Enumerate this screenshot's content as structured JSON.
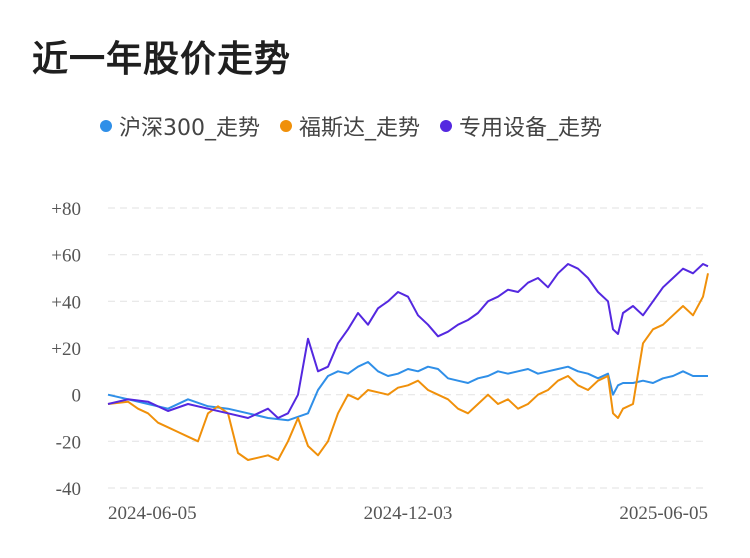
{
  "chart_data": {
    "type": "line",
    "title": "近一年股价走势",
    "xlabel": "",
    "ylabel": "",
    "ylim": [
      -40,
      80
    ],
    "y_ticks": [
      80,
      60,
      40,
      20,
      0,
      -20,
      -40
    ],
    "y_tick_labels": [
      "+80",
      "+60",
      "+40",
      "+20",
      "0",
      "-20",
      "-40"
    ],
    "x_tick_labels": [
      "2024-06-05",
      "2024-12-03",
      "2025-06-05"
    ],
    "x_tick_positions": [
      0,
      120,
      240
    ],
    "x_range": [
      0,
      240
    ],
    "grid": true,
    "legend_position": "top",
    "series": [
      {
        "name": "沪深300_走势",
        "color": "#2f8fe8",
        "x": [
          0,
          8,
          16,
          24,
          32,
          40,
          48,
          56,
          64,
          72,
          80,
          84,
          88,
          92,
          96,
          100,
          104,
          108,
          112,
          116,
          120,
          124,
          128,
          132,
          136,
          140,
          144,
          148,
          152,
          156,
          160,
          164,
          168,
          172,
          176,
          180,
          184,
          188,
          192,
          196,
          200,
          202,
          204,
          206,
          210,
          214,
          218,
          222,
          226,
          230,
          234,
          240
        ],
        "values": [
          0,
          -2,
          -4,
          -6,
          -2,
          -5,
          -6,
          -8,
          -10,
          -11,
          -8,
          2,
          8,
          10,
          9,
          12,
          14,
          10,
          8,
          9,
          11,
          10,
          12,
          11,
          7,
          6,
          5,
          7,
          8,
          10,
          9,
          10,
          11,
          9,
          10,
          11,
          12,
          10,
          9,
          7,
          9,
          0,
          4,
          5,
          5,
          6,
          5,
          7,
          8,
          10,
          8,
          8
        ]
      },
      {
        "name": "福斯达_走势",
        "color": "#f0900a",
        "x": [
          0,
          8,
          12,
          16,
          20,
          24,
          28,
          32,
          36,
          40,
          44,
          48,
          52,
          56,
          60,
          64,
          68,
          72,
          76,
          80,
          84,
          88,
          92,
          96,
          100,
          104,
          108,
          112,
          116,
          120,
          124,
          128,
          132,
          136,
          140,
          144,
          148,
          152,
          156,
          160,
          164,
          168,
          172,
          176,
          180,
          184,
          188,
          192,
          196,
          200,
          202,
          204,
          206,
          210,
          214,
          218,
          222,
          226,
          230,
          234,
          238,
          240
        ],
        "values": [
          -4,
          -3,
          -6,
          -8,
          -12,
          -14,
          -16,
          -18,
          -20,
          -8,
          -5,
          -8,
          -25,
          -28,
          -27,
          -26,
          -28,
          -20,
          -10,
          -22,
          -26,
          -20,
          -8,
          0,
          -2,
          2,
          1,
          0,
          3,
          4,
          6,
          2,
          0,
          -2,
          -6,
          -8,
          -4,
          0,
          -4,
          -2,
          -6,
          -4,
          0,
          2,
          6,
          8,
          4,
          2,
          6,
          8,
          -8,
          -10,
          -6,
          -4,
          22,
          28,
          30,
          34,
          38,
          34,
          42,
          52
        ]
      },
      {
        "name": "专用设备_走势",
        "color": "#5428e0",
        "x": [
          0,
          8,
          16,
          24,
          32,
          40,
          48,
          56,
          60,
          64,
          68,
          72,
          76,
          80,
          84,
          88,
          92,
          96,
          100,
          104,
          108,
          112,
          116,
          120,
          124,
          128,
          132,
          136,
          140,
          144,
          148,
          152,
          156,
          160,
          164,
          168,
          172,
          176,
          180,
          184,
          188,
          192,
          196,
          200,
          202,
          204,
          206,
          210,
          214,
          218,
          222,
          226,
          230,
          234,
          238,
          240
        ],
        "values": [
          -4,
          -2,
          -3,
          -7,
          -4,
          -6,
          -8,
          -10,
          -8,
          -6,
          -10,
          -8,
          0,
          24,
          10,
          12,
          22,
          28,
          35,
          30,
          37,
          40,
          44,
          42,
          34,
          30,
          25,
          27,
          30,
          32,
          35,
          40,
          42,
          45,
          44,
          48,
          50,
          46,
          52,
          56,
          54,
          50,
          44,
          40,
          28,
          26,
          35,
          38,
          34,
          40,
          46,
          50,
          54,
          52,
          56,
          55
        ]
      }
    ]
  }
}
